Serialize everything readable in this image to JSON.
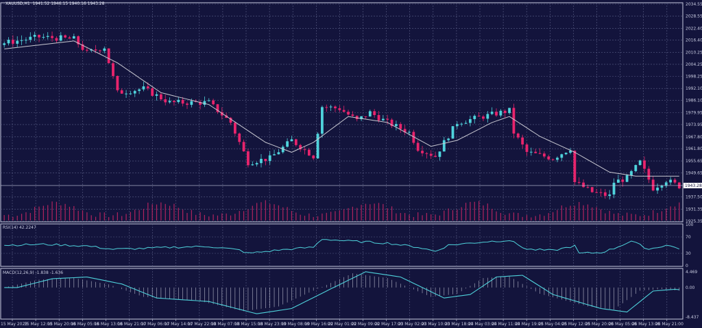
{
  "header": {
    "symbol_info": "XAUUSD,H1  1941.52 1946.15 1940.16 1943.28"
  },
  "chart_data": [
    {
      "type": "candlestick",
      "title": "XAUUSD,H1",
      "ohlc_last": {
        "open": 1941.52,
        "high": 1946.15,
        "low": 1940.16,
        "close": 1943.28
      },
      "current_price_label": "1943.28",
      "y_ticks": [
        "2034.55",
        "2028.55",
        "2022.40",
        "2016.40",
        "2010.25",
        "2004.25",
        "1998.25",
        "1992.10",
        "1986.10",
        "1979.95",
        "1973.95",
        "1967.80",
        "1961.80",
        "1955.65",
        "1949.65",
        "1937.50",
        "1931.35",
        "1925.35"
      ],
      "ylim": [
        1925.35,
        2034.55
      ],
      "candle_count": 156,
      "close_keypoints": [
        [
          0,
          2015
        ],
        [
          8,
          2018
        ],
        [
          16,
          2017
        ],
        [
          19,
          2010
        ],
        [
          23,
          2013
        ],
        [
          26,
          1990
        ],
        [
          32,
          1992
        ],
        [
          38,
          1985
        ],
        [
          47,
          1985
        ],
        [
          52,
          1975
        ],
        [
          56,
          1955
        ],
        [
          61,
          1957
        ],
        [
          66,
          1966
        ],
        [
          71,
          1958
        ],
        [
          73,
          1983
        ],
        [
          77,
          1982
        ],
        [
          81,
          1976
        ],
        [
          84,
          1980
        ],
        [
          88,
          1975
        ],
        [
          93,
          1970
        ],
        [
          95,
          1962
        ],
        [
          99,
          1958
        ],
        [
          101,
          1965
        ],
        [
          104,
          1975
        ],
        [
          110,
          1978
        ],
        [
          116,
          1981
        ],
        [
          117,
          1970
        ],
        [
          120,
          1960
        ],
        [
          126,
          1957
        ],
        [
          130,
          1962
        ],
        [
          131,
          1945
        ],
        [
          135,
          1940
        ],
        [
          139,
          1938
        ],
        [
          140,
          1945
        ],
        [
          143,
          1947
        ],
        [
          146,
          1955
        ],
        [
          149,
          1942
        ],
        [
          152,
          1946
        ],
        [
          155,
          1943
        ]
      ],
      "ma_keypoints": [
        [
          0,
          2012
        ],
        [
          16,
          2016
        ],
        [
          26,
          2005
        ],
        [
          36,
          1990
        ],
        [
          47,
          1984
        ],
        [
          60,
          1965
        ],
        [
          66,
          1960
        ],
        [
          71,
          1965
        ],
        [
          79,
          1978
        ],
        [
          88,
          1975
        ],
        [
          98,
          1963
        ],
        [
          104,
          1966
        ],
        [
          112,
          1975
        ],
        [
          116,
          1978
        ],
        [
          123,
          1968
        ],
        [
          131,
          1960
        ],
        [
          139,
          1950
        ],
        [
          145,
          1948
        ],
        [
          155,
          1948
        ]
      ]
    },
    {
      "type": "line",
      "title": "RSI(14) 42.2247",
      "y_ticks": [
        "100",
        "70",
        "30",
        "0"
      ],
      "ylim": [
        0,
        100
      ],
      "keypoints": [
        [
          0,
          50
        ],
        [
          9,
          52
        ],
        [
          19,
          48
        ],
        [
          25,
          40
        ],
        [
          32,
          42
        ],
        [
          39,
          45
        ],
        [
          47,
          47
        ],
        [
          54,
          38
        ],
        [
          56,
          30
        ],
        [
          63,
          38
        ],
        [
          71,
          45
        ],
        [
          73,
          65
        ],
        [
          79,
          60
        ],
        [
          88,
          55
        ],
        [
          95,
          45
        ],
        [
          99,
          35
        ],
        [
          102,
          50
        ],
        [
          110,
          58
        ],
        [
          116,
          62
        ],
        [
          120,
          40
        ],
        [
          126,
          37
        ],
        [
          131,
          48
        ],
        [
          132,
          30
        ],
        [
          137,
          32
        ],
        [
          140,
          42
        ],
        [
          144,
          60
        ],
        [
          148,
          40
        ],
        [
          152,
          50
        ],
        [
          155,
          42
        ]
      ]
    },
    {
      "type": "line",
      "title": "MACD(12,26,9) -1.838 -1.636",
      "y_ticks": [
        "4.469",
        "0.00",
        "-8.437"
      ],
      "ylim": [
        -8.437,
        4.469
      ],
      "keypoints": [
        [
          0,
          0
        ],
        [
          8,
          2.5
        ],
        [
          16,
          3
        ],
        [
          24,
          1
        ],
        [
          32,
          -3
        ],
        [
          44,
          -4
        ],
        [
          55,
          -7.5
        ],
        [
          63,
          -6
        ],
        [
          71,
          -1
        ],
        [
          80,
          4.5
        ],
        [
          88,
          3
        ],
        [
          98,
          -3
        ],
        [
          104,
          -2
        ],
        [
          110,
          3
        ],
        [
          116,
          3.5
        ],
        [
          123,
          -2
        ],
        [
          134,
          -6
        ],
        [
          140,
          -7
        ],
        [
          146,
          -1
        ],
        [
          151,
          -0.5
        ],
        [
          155,
          -1
        ]
      ]
    }
  ],
  "x_ticks": [
    "15 May 2023",
    "15 May 12:00",
    "15 May 20:00",
    "16 May 05:00",
    "16 May 13:00",
    "16 May 21:00",
    "17 May 06:00",
    "17 May 14:00",
    "17 May 22:00",
    "18 May 07:00",
    "18 May 15:00",
    "18 May 23:00",
    "19 May 08:00",
    "19 May 16:00",
    "22 May 01:00",
    "22 May 09:00",
    "22 May 17:00",
    "23 May 02:00",
    "23 May 10:00",
    "23 May 18:00",
    "24 May 03:00",
    "24 May 11:00",
    "24 May 19:00",
    "25 May 04:00",
    "25 May 12:00",
    "25 May 20:00",
    "26 May 05:00",
    "26 May 13:00",
    "26 May 21:00"
  ],
  "colors": {
    "bg": "#13143c",
    "bull": "#4fd3dc",
    "bear": "#e8246c",
    "ma": "#c9c9d2",
    "grid": "#5a5e86",
    "volume": "#b0245f",
    "rsi": "#4fd3dc",
    "macd_hist": "#b8bacb",
    "signal": "#4fd3dc"
  }
}
